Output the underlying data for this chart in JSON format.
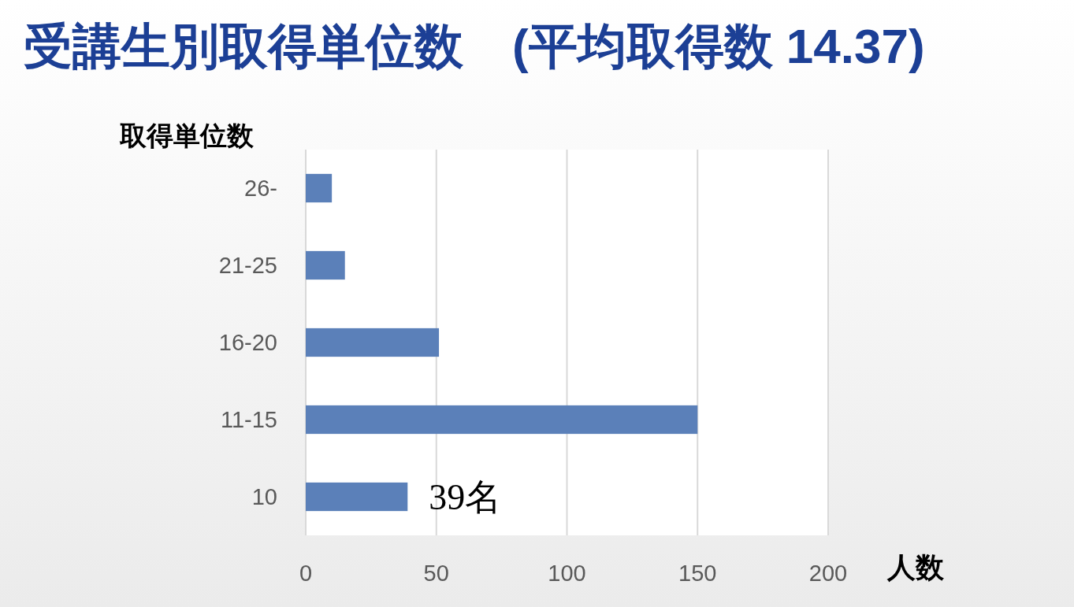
{
  "chart_data": {
    "type": "bar",
    "orientation": "horizontal",
    "title": "受講生別取得単位数　(平均取得数 14.37)",
    "xlabel": "人数",
    "ylabel": "取得単位数",
    "categories": [
      "26-",
      "21-25",
      "16-20",
      "11-15",
      "10"
    ],
    "values": [
      10,
      15,
      51,
      150,
      39
    ],
    "value_labels": [
      null,
      null,
      null,
      null,
      "39名"
    ],
    "color": "#5b80b9",
    "xlim": [
      0,
      200
    ],
    "xticks": [
      0,
      50,
      100,
      150,
      200
    ],
    "grid": "x"
  }
}
